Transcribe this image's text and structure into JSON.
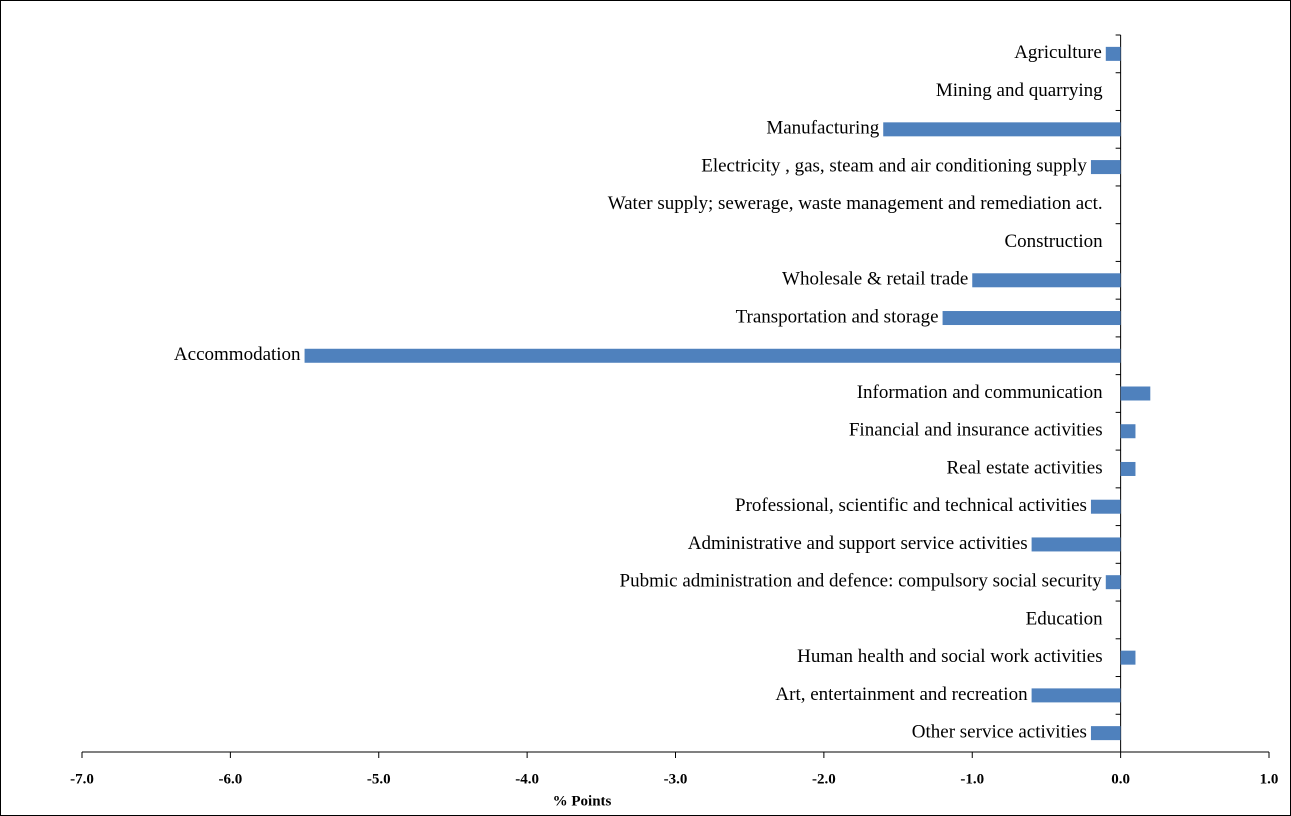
{
  "chart_data": {
    "type": "bar",
    "orientation": "horizontal",
    "categories": [
      "Agriculture",
      "Mining and quarrying",
      "Manufacturing",
      "Electricity , gas, steam and air conditioning supply",
      "Water supply; sewerage, waste management and remediation act.",
      "Construction",
      "Wholesale & retail trade",
      "Transportation and storage",
      "Accommodation",
      "Information and communication",
      "Financial and insurance activities",
      "Real estate activities",
      "Professional, scientific and technical activities",
      "Administrative and support service activities",
      "Pubmic administration  and defence: compulsory social security",
      "Education",
      "Human health and social work activities",
      "Art, entertainment and recreation",
      "Other service activities"
    ],
    "values": [
      -0.1,
      0,
      -1.6,
      -0.2,
      0,
      0,
      -1.0,
      -1.2,
      -5.5,
      0.2,
      0.1,
      0.1,
      -0.2,
      -0.6,
      -0.1,
      0,
      0.1,
      -0.6,
      -0.2
    ],
    "color": "#4f81bd",
    "xlabel": "% Points",
    "xlim": [
      -7,
      1
    ],
    "xticks": [
      {
        "value": -7,
        "label": "-7.0"
      },
      {
        "value": -6,
        "label": "-6.0"
      },
      {
        "value": -5,
        "label": "-5.0"
      },
      {
        "value": -4,
        "label": "-4.0"
      },
      {
        "value": -3,
        "label": "-3.0"
      },
      {
        "value": -2,
        "label": "-2.0"
      },
      {
        "value": -1,
        "label": "-1.0"
      },
      {
        "value": 0,
        "label": "0.0"
      },
      {
        "value": 1,
        "label": "1.0"
      }
    ],
    "grid": false
  }
}
